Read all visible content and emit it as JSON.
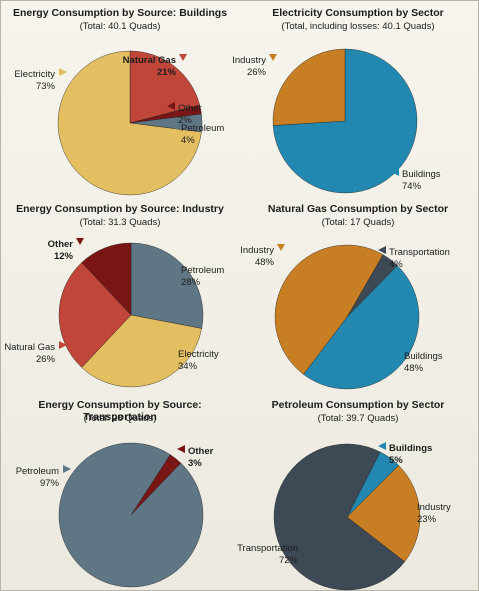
{
  "chart_data": [
    {
      "type": "pie",
      "title": "Energy Consumption by Source: Buildings",
      "subtitle": "(Total: 40.1 Quads)",
      "slices": [
        {
          "label": "Natural Gas",
          "value": 21,
          "display": "21%",
          "color": "#c1463a",
          "bold": true
        },
        {
          "label": "Other",
          "value": 2,
          "display": "2%",
          "color": "#7a1515",
          "bold": false
        },
        {
          "label": "Petroleum",
          "value": 4,
          "display": "4%",
          "color": "#5f7685",
          "bold": false
        },
        {
          "label": "Electricity",
          "value": 73,
          "display": "73%",
          "color": "#e4bf62",
          "bold": false
        }
      ]
    },
    {
      "type": "pie",
      "title": "Electricity Consumption by Sector",
      "subtitle": "(Total, including losses: 40.1 Quads)",
      "slices": [
        {
          "label": "Buildings",
          "value": 74,
          "display": "74%",
          "color": "#2388b0",
          "bold": false
        },
        {
          "label": "Industry",
          "value": 26,
          "display": "26%",
          "color": "#c87f23",
          "bold": false
        }
      ]
    },
    {
      "type": "pie",
      "title": "Energy Consumption by Source: Industry",
      "subtitle": "(Total: 31.3 Quads)",
      "slices": [
        {
          "label": "Petroleum",
          "value": 28,
          "display": "28%",
          "color": "#5f7685",
          "bold": false
        },
        {
          "label": "Electricity",
          "value": 34,
          "display": "34%",
          "color": "#e4bf62",
          "bold": false
        },
        {
          "label": "Natural Gas",
          "value": 26,
          "display": "26%",
          "color": "#c1463a",
          "bold": false
        },
        {
          "label": "Other",
          "value": 12,
          "display": "12%",
          "color": "#7a1515",
          "bold": true
        }
      ]
    },
    {
      "type": "pie",
      "title": "Natural Gas Consumption by Sector",
      "subtitle": "(Total: 17 Quads)",
      "slices": [
        {
          "label": "Transportation",
          "value": 4,
          "display": "4%",
          "color": "#3d4a55",
          "bold": false
        },
        {
          "label": "Buildings",
          "value": 48,
          "display": "48%",
          "color": "#2388b0",
          "bold": false
        },
        {
          "label": "Industry",
          "value": 48,
          "display": "48%",
          "color": "#c87f23",
          "bold": false
        }
      ]
    },
    {
      "type": "pie",
      "title": "Energy Consumption by Source: Transportation",
      "subtitle": "(Total: 28 Quads)",
      "slices": [
        {
          "label": "Other",
          "value": 3,
          "display": "3%",
          "color": "#7a1515",
          "bold": true
        },
        {
          "label": "Petroleum",
          "value": 97,
          "display": "97%",
          "color": "#5f7685",
          "bold": false
        }
      ]
    },
    {
      "type": "pie",
      "title": "Petroleum Consumption by Sector",
      "subtitle": "(Total: 39.7 Quads)",
      "slices": [
        {
          "label": "Buildings",
          "value": 5,
          "display": "5%",
          "color": "#2388b0",
          "bold": true
        },
        {
          "label": "Industry",
          "value": 23,
          "display": "23%",
          "color": "#c87f23",
          "bold": false
        },
        {
          "label": "Transportation",
          "value": 72,
          "display": "72%",
          "color": "#3d4a55",
          "bold": false
        }
      ]
    }
  ]
}
